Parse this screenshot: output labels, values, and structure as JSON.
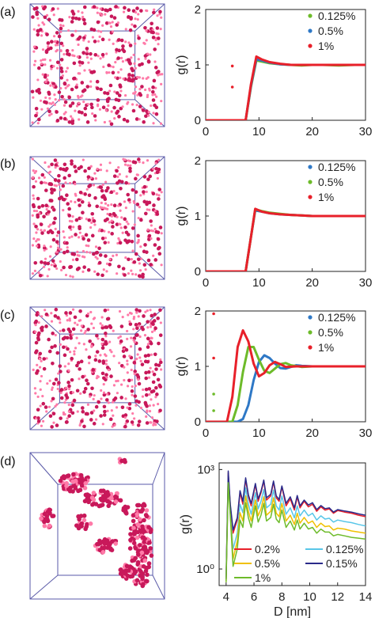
{
  "panel_labels": [
    "(a)",
    "(b)",
    "(c)",
    "(d)"
  ],
  "colors": {
    "particle": "#c8185a",
    "particle_highlight": "#ff7aa8",
    "box_edge": "#5a5aa8",
    "green": "#6dbb2a",
    "blue": "#2e78c6",
    "red": "#e8202a",
    "yellow": "#f0c000",
    "cyan": "#58c6e8",
    "navy": "#2a2a8a"
  },
  "chart_data": [
    {
      "type": "line",
      "panel": "(a)",
      "ylabel": "g(r)",
      "xlim": [
        0,
        30
      ],
      "ylim": [
        0,
        2
      ],
      "xticks": [
        0,
        10,
        20,
        30
      ],
      "yticks": [
        0,
        1,
        2
      ],
      "legend_position": "top-right",
      "series": [
        {
          "name": "0.125%",
          "color": "#6dbb2a",
          "x": [
            0,
            7.5,
            8.5,
            9.5,
            10.5,
            12,
            14,
            16,
            18,
            20,
            22,
            25,
            28,
            30
          ],
          "y": [
            0,
            0,
            0.6,
            1.08,
            1.06,
            1.03,
            1.01,
            1.0,
            0.99,
            1.0,
            1.0,
            0.99,
            1.0,
            1.0
          ]
        },
        {
          "name": "0.5%",
          "color": "#2e78c6",
          "x": [
            0,
            7.5,
            8.5,
            9.5,
            10.5,
            12,
            14,
            16,
            18,
            20,
            22,
            25,
            28,
            30
          ],
          "y": [
            0,
            0,
            0.62,
            1.1,
            1.08,
            1.04,
            1.01,
            1.0,
            1.0,
            1.0,
            1.0,
            1.0,
            1.0,
            1.0
          ]
        },
        {
          "name": "1%",
          "color": "#e8202a",
          "x": [
            0,
            7.5,
            8.5,
            9.5,
            10.5,
            12,
            14,
            16,
            18,
            20,
            22,
            25,
            28,
            30
          ],
          "y": [
            0,
            0,
            0.65,
            1.15,
            1.1,
            1.05,
            1.02,
            1.0,
            1.0,
            1.0,
            1.0,
            1.0,
            1.0,
            1.0
          ]
        }
      ],
      "outliers": [
        {
          "x": 5,
          "y": 0.98,
          "color": "#e8202a"
        },
        {
          "x": 5,
          "y": 0.6,
          "color": "#e8202a"
        }
      ]
    },
    {
      "type": "line",
      "panel": "(b)",
      "ylabel": "g(r)",
      "xlim": [
        0,
        30
      ],
      "ylim": [
        0,
        2
      ],
      "xticks": [
        0,
        10,
        20,
        30
      ],
      "yticks": [
        0,
        1,
        2
      ],
      "legend_position": "top-right",
      "series": [
        {
          "name": "0.125%",
          "color": "#2e78c6",
          "x": [
            0,
            7.5,
            8.5,
            9.3,
            10.5,
            12,
            14,
            16,
            18,
            20,
            22,
            25,
            28,
            30
          ],
          "y": [
            0,
            0,
            0.62,
            1.1,
            1.08,
            1.05,
            1.03,
            1.02,
            1.01,
            1.0,
            1.0,
            1.0,
            1.0,
            1.0
          ]
        },
        {
          "name": "0.5%",
          "color": "#6dbb2a",
          "x": [
            0,
            7.5,
            8.5,
            9.3,
            10.5,
            12,
            14,
            16,
            18,
            20,
            22,
            25,
            28,
            30
          ],
          "y": [
            0,
            0,
            0.62,
            1.12,
            1.09,
            1.06,
            1.04,
            1.02,
            1.01,
            1.0,
            1.0,
            1.0,
            1.0,
            1.0
          ]
        },
        {
          "name": "1%",
          "color": "#e8202a",
          "x": [
            0,
            7.5,
            8.5,
            9.3,
            10.5,
            12,
            14,
            16,
            18,
            20,
            22,
            25,
            28,
            30
          ],
          "y": [
            0,
            0,
            0.62,
            1.13,
            1.08,
            1.05,
            1.03,
            1.02,
            1.01,
            1.0,
            1.0,
            1.0,
            1.0,
            1.0
          ]
        }
      ],
      "outliers": []
    },
    {
      "type": "line",
      "panel": "(c)",
      "ylabel": "g(r)",
      "xlim": [
        0,
        30
      ],
      "ylim": [
        0,
        2
      ],
      "xticks": [
        0,
        10,
        20,
        30
      ],
      "yticks": [
        0,
        1,
        2
      ],
      "legend_position": "top-right",
      "series": [
        {
          "name": "0.125%",
          "color": "#2e78c6",
          "x": [
            0,
            6,
            7,
            8,
            9,
            10,
            11,
            12,
            13,
            14,
            15,
            16,
            17,
            18,
            20,
            22,
            25,
            30
          ],
          "y": [
            0,
            0,
            0.05,
            0.3,
            0.75,
            1.08,
            1.2,
            1.15,
            1.05,
            0.97,
            0.96,
            0.99,
            1.02,
            1.01,
            1.0,
            1.0,
            1.0,
            1.0
          ]
        },
        {
          "name": "0.5%",
          "color": "#6dbb2a",
          "x": [
            0,
            5,
            6,
            7,
            8,
            9,
            10,
            11,
            12,
            13,
            14,
            15,
            16,
            18,
            20,
            22,
            25,
            30
          ],
          "y": [
            0,
            0,
            0.3,
            0.9,
            1.35,
            1.35,
            1.12,
            0.92,
            0.88,
            0.96,
            1.04,
            1.06,
            1.02,
            0.99,
            1.0,
            1.0,
            1.0,
            1.0
          ]
        },
        {
          "name": "1%",
          "color": "#e8202a",
          "x": [
            0,
            4,
            5,
            6,
            7,
            8,
            9,
            10,
            11,
            12,
            13,
            14,
            15,
            17,
            20,
            22,
            25,
            30
          ],
          "y": [
            0,
            0,
            0.45,
            1.35,
            1.65,
            1.45,
            1.05,
            0.82,
            0.88,
            1.02,
            1.08,
            1.04,
            0.99,
            1.0,
            1.0,
            1.0,
            1.0,
            1.0
          ]
        }
      ],
      "outliers": [
        {
          "x": 1.5,
          "y": 1.95,
          "color": "#e8202a"
        },
        {
          "x": 1.5,
          "y": 1.15,
          "color": "#e8202a"
        },
        {
          "x": 1.5,
          "y": 0.5,
          "color": "#6dbb2a"
        },
        {
          "x": 1.5,
          "y": 0.2,
          "color": "#6dbb2a"
        }
      ]
    },
    {
      "type": "line",
      "panel": "(d)",
      "ylabel": "g(r)",
      "xlabel": "D [nm]",
      "xlim": [
        3.5,
        14
      ],
      "ylim_log10": [
        -0.5,
        3.2
      ],
      "yscale": "log",
      "xticks": [
        4,
        6,
        8,
        10,
        12,
        14
      ],
      "yticks": [
        {
          "value": 1,
          "label": "10⁰"
        },
        {
          "value": 1000,
          "label": "10³"
        }
      ],
      "legend_position": "bottom",
      "series": [
        {
          "name": "0.2%",
          "color": "#e8202a",
          "x": [
            4.0,
            4.15,
            4.3,
            4.5,
            4.8,
            5.0,
            5.2,
            5.4,
            5.6,
            5.8,
            6.1,
            6.3,
            6.5,
            6.7,
            6.9,
            7.2,
            7.4,
            7.6,
            7.8,
            8.0,
            8.3,
            8.6,
            8.9,
            9.1,
            9.3,
            9.6,
            9.9,
            10.2,
            10.5,
            10.8,
            11.1,
            11.4,
            11.7,
            12.0,
            12.5,
            13.0,
            13.5,
            14.0
          ],
          "y": [
            0.5,
            800,
            80,
            12,
            30,
            200,
            90,
            500,
            150,
            80,
            350,
            110,
            200,
            450,
            120,
            160,
            420,
            140,
            110,
            300,
            80,
            130,
            60,
            150,
            70,
            110,
            75,
            90,
            55,
            75,
            60,
            65,
            48,
            58,
            52,
            48,
            42,
            38
          ]
        },
        {
          "name": "0.125%",
          "color": "#58c6e8",
          "x": [
            4.0,
            4.15,
            4.3,
            4.5,
            4.8,
            5.0,
            5.2,
            5.4,
            5.6,
            5.8,
            6.1,
            6.3,
            6.5,
            6.7,
            6.9,
            7.2,
            7.4,
            7.6,
            7.8,
            8.0,
            8.3,
            8.6,
            8.9,
            9.1,
            9.3,
            9.6,
            9.9,
            10.2,
            10.5,
            10.8,
            11.1,
            11.4,
            11.7,
            12.0,
            12.5,
            13.0,
            13.5,
            14.0
          ],
          "y": [
            0.5,
            600,
            60,
            4,
            12,
            90,
            50,
            280,
            90,
            45,
            200,
            65,
            110,
            250,
            70,
            90,
            240,
            80,
            60,
            160,
            45,
            70,
            35,
            80,
            40,
            60,
            40,
            48,
            30,
            40,
            32,
            34,
            26,
            30,
            27,
            25,
            22,
            20
          ]
        },
        {
          "name": "0.5%",
          "color": "#f0c000",
          "x": [
            4.0,
            4.15,
            4.3,
            4.5,
            4.8,
            5.0,
            5.2,
            5.4,
            5.6,
            5.8,
            6.1,
            6.3,
            6.5,
            6.7,
            6.9,
            7.2,
            7.4,
            7.6,
            7.8,
            8.0,
            8.3,
            8.6,
            8.9,
            9.1,
            9.3,
            9.6,
            9.9,
            10.2,
            10.5,
            10.8,
            11.1,
            11.4,
            11.7,
            12.0,
            12.5,
            13.0,
            13.5,
            14.0
          ],
          "y": [
            0.4,
            500,
            50,
            2,
            7,
            50,
            28,
            160,
            55,
            28,
            120,
            40,
            65,
            150,
            42,
            55,
            140,
            48,
            38,
            95,
            28,
            42,
            22,
            48,
            24,
            36,
            24,
            28,
            18,
            24,
            19,
            20,
            15,
            17,
            16,
            14,
            13,
            12
          ]
        },
        {
          "name": "0.15%",
          "color": "#2a2a8a",
          "x": [
            4.0,
            4.15,
            4.3,
            4.5,
            4.8,
            5.0,
            5.2,
            5.4,
            5.6,
            5.8,
            6.1,
            6.3,
            6.5,
            6.7,
            6.9,
            7.2,
            7.4,
            7.6,
            7.8,
            8.0,
            8.3,
            8.6,
            8.9,
            9.1,
            9.3,
            9.6,
            9.9,
            10.2,
            10.5,
            10.8,
            11.1,
            11.4,
            11.7,
            12.0,
            12.5,
            13.0,
            13.5,
            14.0
          ],
          "y": [
            0.5,
            900,
            90,
            15,
            35,
            230,
            110,
            560,
            170,
            95,
            380,
            130,
            220,
            480,
            140,
            180,
            450,
            160,
            125,
            320,
            95,
            150,
            70,
            165,
            80,
            120,
            85,
            100,
            62,
            82,
            66,
            70,
            52,
            62,
            56,
            52,
            46,
            42
          ]
        },
        {
          "name": "1%",
          "color": "#6dbb2a",
          "x": [
            4.0,
            4.15,
            4.3,
            4.5,
            4.8,
            5.0,
            5.2,
            5.4,
            5.6,
            5.8,
            6.1,
            6.3,
            6.5,
            6.7,
            6.9,
            7.2,
            7.4,
            7.6,
            7.8,
            8.0,
            8.3,
            8.6,
            8.9,
            9.1,
            9.3,
            9.6,
            9.9,
            10.2,
            10.5,
            10.8,
            11.1,
            11.4,
            11.7,
            12.0,
            12.5,
            13.0,
            13.5,
            14.0
          ],
          "y": [
            0.4,
            400,
            40,
            1.2,
            4,
            30,
            18,
            100,
            35,
            18,
            80,
            26,
            42,
            95,
            28,
            36,
            90,
            32,
            25,
            60,
            18,
            28,
            15,
            30,
            16,
            24,
            16,
            18,
            12,
            16,
            13,
            13,
            10,
            11,
            10,
            9,
            8.5,
            8
          ]
        }
      ]
    }
  ]
}
